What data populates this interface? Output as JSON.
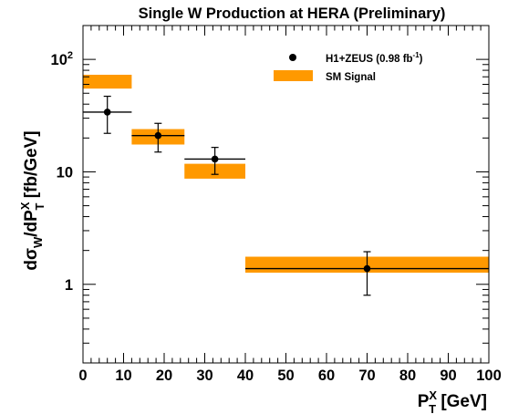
{
  "chart_data": {
    "type": "scatter",
    "title": "Single W Production at HERA (Preliminary)",
    "xlabel": {
      "main": "P",
      "sup": "X",
      "sub": "T",
      "unit": " [GeV]"
    },
    "ylabel": {
      "d": "d",
      "sigma": "σ",
      "sigma_sub": "W",
      "slash": "/dP",
      "p_sup": "X",
      "p_sub": "T",
      "unit": " [fb/GeV]"
    },
    "xlim": [
      0,
      100
    ],
    "ylim": [
      0.2,
      200
    ],
    "yscale": "log",
    "x_ticks": [
      0,
      10,
      20,
      30,
      40,
      50,
      60,
      70,
      80,
      90,
      100
    ],
    "y_ticks": [
      {
        "value": 1,
        "label": "1"
      },
      {
        "value": 10,
        "label": "10"
      },
      {
        "value": 100,
        "label": "10",
        "sup": "2"
      }
    ],
    "legend": {
      "position": "top-right",
      "data_label": "H1+ZEUS (0.98 fb",
      "data_sup": "-1",
      "data_close": ")",
      "sm_label": "SM Signal"
    },
    "series": [
      {
        "name": "H1+ZEUS (0.98 fb-1)",
        "kind": "points",
        "color": "#000000",
        "points": [
          {
            "x": 6,
            "xlo": 0,
            "xhi": 12,
            "y": 34,
            "ylo": 22,
            "yhi": 47
          },
          {
            "x": 18.5,
            "xlo": 12,
            "xhi": 25,
            "y": 21,
            "ylo": 15,
            "yhi": 27
          },
          {
            "x": 32.5,
            "xlo": 25,
            "xhi": 40,
            "y": 13,
            "ylo": 9.5,
            "yhi": 16.5
          },
          {
            "x": 70,
            "xlo": 40,
            "xhi": 100,
            "y": 1.38,
            "ylo": 0.8,
            "yhi": 1.95
          }
        ]
      },
      {
        "name": "SM Signal",
        "kind": "bands",
        "color": "#ff9900",
        "bins": [
          {
            "xlo": 0,
            "xhi": 12,
            "ylo": 55,
            "yhi": 73
          },
          {
            "xlo": 12,
            "xhi": 25,
            "ylo": 17.5,
            "yhi": 24
          },
          {
            "xlo": 25,
            "xhi": 40,
            "ylo": 8.7,
            "yhi": 11.8
          },
          {
            "xlo": 40,
            "xhi": 100,
            "ylo": 1.27,
            "yhi": 1.76
          }
        ]
      }
    ]
  }
}
